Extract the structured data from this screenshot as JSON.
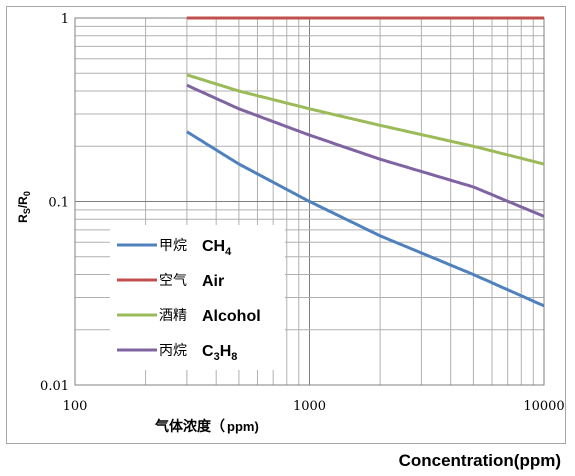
{
  "chart_data": {
    "type": "line",
    "x_scale": "log",
    "y_scale": "log",
    "xlim": [
      100,
      10000
    ],
    "ylim": [
      0.01,
      1
    ],
    "x_ticks": [
      "100",
      "1000",
      "10000"
    ],
    "y_ticks": [
      "1",
      "0.1",
      "0.01"
    ],
    "ylabel": "Rs/R0",
    "xlabel": "气体浓度（ppm)",
    "footer_label": "Concentration(ppm)",
    "grid": true,
    "legend_position": "bottom-left",
    "series": [
      {
        "name_cn": "甲烷",
        "name_en": "CH4",
        "color": "#4f81bd",
        "x": [
          300,
          500,
          1000,
          2000,
          5000,
          10000
        ],
        "y": [
          0.24,
          0.16,
          0.1,
          0.065,
          0.04,
          0.027
        ]
      },
      {
        "name_cn": "空气",
        "name_en": "Air",
        "color": "#c0504d",
        "x": [
          300,
          10000
        ],
        "y": [
          1,
          1
        ]
      },
      {
        "name_cn": "酒精",
        "name_en": "Alcohol",
        "color": "#9bbb59",
        "x": [
          300,
          500,
          1000,
          2000,
          5000,
          10000
        ],
        "y": [
          0.49,
          0.4,
          0.32,
          0.26,
          0.2,
          0.16
        ]
      },
      {
        "name_cn": "丙烷",
        "name_en": "C3H8",
        "color": "#8064a2",
        "x": [
          300,
          500,
          1000,
          2000,
          5000,
          10000
        ],
        "y": [
          0.43,
          0.32,
          0.23,
          0.17,
          0.12,
          0.083
        ]
      }
    ]
  }
}
